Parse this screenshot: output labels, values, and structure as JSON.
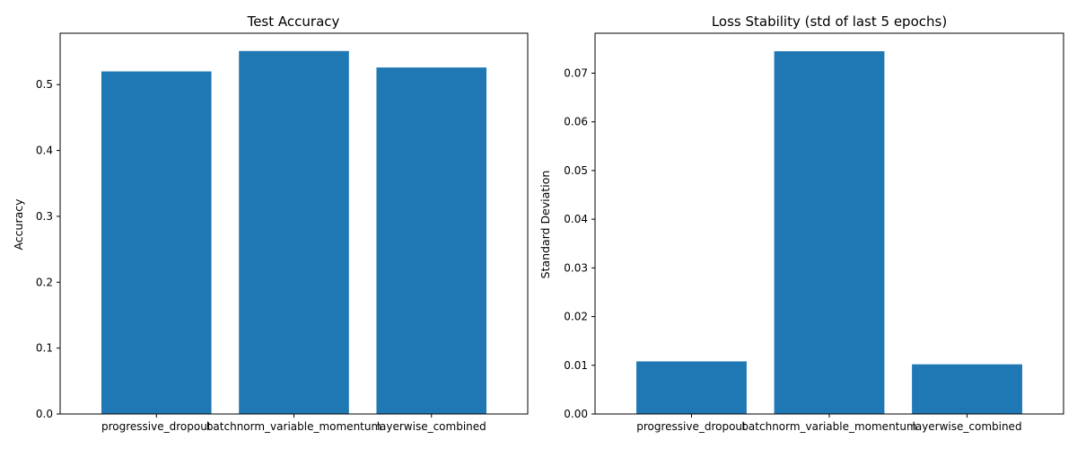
{
  "chart_data": [
    {
      "type": "bar",
      "title": "Test Accuracy",
      "xlabel": "",
      "ylabel": "Accuracy",
      "categories": [
        "progressive_dropout",
        "batchnorm_variable_momentum",
        "layerwise_combined"
      ],
      "values": [
        0.52,
        0.551,
        0.526
      ],
      "ylim": [
        0,
        0.578
      ],
      "yticks": [
        0.0,
        0.1,
        0.2,
        0.3,
        0.4,
        0.5
      ],
      "ytick_labels": [
        "0.0",
        "0.1",
        "0.2",
        "0.3",
        "0.4",
        "0.5"
      ],
      "grid": false,
      "bar_color": "#1f77b4"
    },
    {
      "type": "bar",
      "title": "Loss Stability (std of last 5 epochs)",
      "xlabel": "",
      "ylabel": "Standard Deviation",
      "categories": [
        "progressive_dropout",
        "batchnorm_variable_momentum",
        "layerwise_combined"
      ],
      "values": [
        0.0108,
        0.0745,
        0.0102
      ],
      "ylim": [
        0,
        0.0782
      ],
      "yticks": [
        0.0,
        0.01,
        0.02,
        0.03,
        0.04,
        0.05,
        0.06,
        0.07
      ],
      "ytick_labels": [
        "0.00",
        "0.01",
        "0.02",
        "0.03",
        "0.04",
        "0.05",
        "0.06",
        "0.07"
      ],
      "grid": false,
      "bar_color": "#1f77b4"
    }
  ]
}
